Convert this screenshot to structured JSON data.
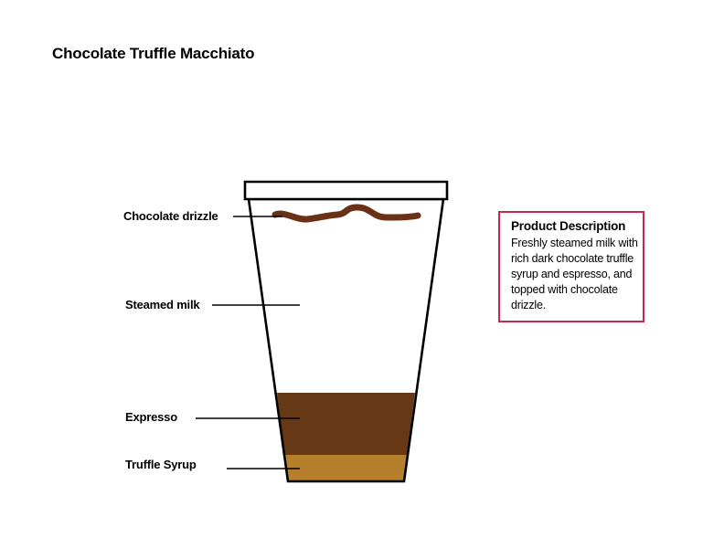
{
  "title": "Chocolate Truffle Macchiato",
  "colors": {
    "drizzle": "#6b3117",
    "espresso": "#663816",
    "syrup": "#b67f2c",
    "cup_outline": "#000000",
    "description_border": "#c8284e"
  },
  "labels": {
    "drizzle": "Chocolate drizzle",
    "milk": "Steamed milk",
    "espresso": "Expresso",
    "syrup": "Truffle Syrup"
  },
  "description": {
    "title": "Product Description",
    "text": "Freshly steamed milk with rich dark chocolate truffle syrup and espresso, and topped with chocolate drizzle."
  }
}
